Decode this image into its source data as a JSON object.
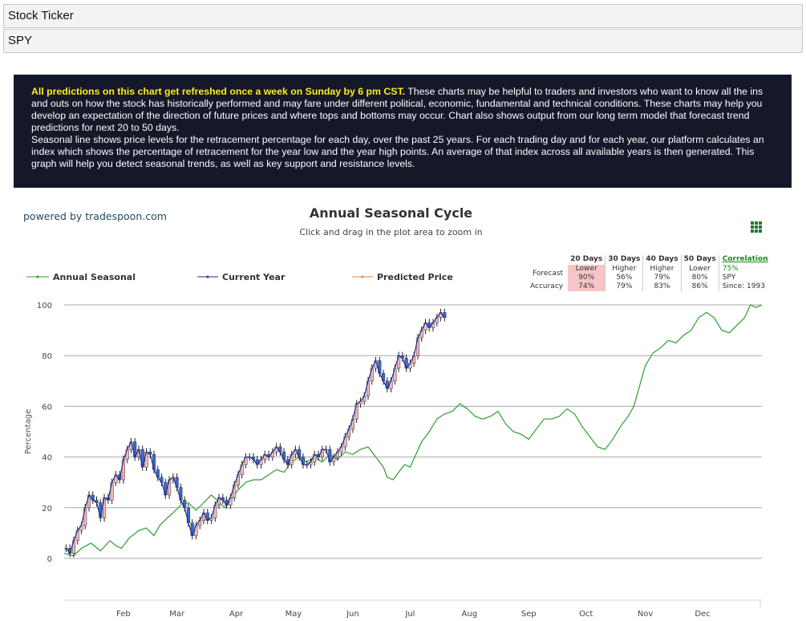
{
  "form": {
    "ticker_label": "Stock Ticker",
    "ticker_value": "SPY"
  },
  "info": {
    "highlight": "All predictions on this chart get refreshed once a week on Sunday by 6 pm CST.",
    "paragraph1": " These charts may be helpful to traders and investors who want to know all the ins and outs on how the stock has historically performed and may fare under different political, economic, fundamental and technical conditions. These charts may help you develop an expectation of the direction of future prices and where tops and bottoms may occur. Chart also shows output from our long term model that forecast trend predictions for next 20 to 50 days.",
    "paragraph2": "Seasonal line shows price levels for the retracement percentage for each day, over the past 25 years. For each trading day and for each year, our platform calculates an index which shows the percentage of retracement for the year low and the year high points. An average of that index across all available years is then generated. This graph will help you detect seasonal trends, as well as key support and resistance levels."
  },
  "powered_by": "powered by tradespoon.com",
  "forecast_table": {
    "headers": [
      "20 Days",
      "30 Days",
      "40 Days",
      "50 Days"
    ],
    "forecast_label": "Forecast",
    "accuracy_label": "Accuracy",
    "forecast": [
      {
        "dir": "Lower",
        "pct": "90%"
      },
      {
        "dir": "Higher",
        "pct": "56%"
      },
      {
        "dir": "Higher",
        "pct": "79%"
      },
      {
        "dir": "Lower",
        "pct": "80%"
      }
    ],
    "accuracy": [
      "74%",
      "79%",
      "83%",
      "86%"
    ],
    "correlation_label": "Correlation",
    "correlation_value": "75%",
    "symbol": "SPY",
    "since": "Since: 1993"
  },
  "colors": {
    "seasonal": "#2ca02c",
    "current": "#1f2f8f",
    "predicted": "#f08040",
    "candle_up": "#f4b6bb",
    "candle_down": "#3a66d6",
    "grid": "#aaaaaa",
    "pink_cell": "#f7c5c8"
  },
  "chart_data": {
    "type": "line",
    "title": "Annual Seasonal Cycle",
    "subtitle": "Click and drag in the plot area to zoom in",
    "ylabel": "Percentage",
    "ylim": [
      0,
      100
    ],
    "yticks": [
      0,
      20,
      40,
      60,
      80,
      100
    ],
    "xlim": [
      1,
      366
    ],
    "xticks": [
      {
        "label": "Feb",
        "day": 32
      },
      {
        "label": "Mar",
        "day": 60
      },
      {
        "label": "Apr",
        "day": 91
      },
      {
        "label": "May",
        "day": 121
      },
      {
        "label": "Jun",
        "day": 152
      },
      {
        "label": "Jul",
        "day": 182
      },
      {
        "label": "Aug",
        "day": 213
      },
      {
        "label": "Sep",
        "day": 244
      },
      {
        "label": "Oct",
        "day": 274
      },
      {
        "label": "Nov",
        "day": 305
      },
      {
        "label": "Dec",
        "day": 335
      }
    ],
    "legend_position": "top-left",
    "series": [
      {
        "name": "Annual Seasonal",
        "style": "line",
        "points": [
          [
            1,
            2
          ],
          [
            6,
            1
          ],
          [
            10,
            4
          ],
          [
            15,
            6
          ],
          [
            20,
            3
          ],
          [
            25,
            7
          ],
          [
            28,
            5
          ],
          [
            31,
            4
          ],
          [
            35,
            8
          ],
          [
            40,
            11
          ],
          [
            44,
            12
          ],
          [
            48,
            9
          ],
          [
            51,
            13
          ],
          [
            55,
            16
          ],
          [
            58,
            18
          ],
          [
            62,
            21
          ],
          [
            66,
            22
          ],
          [
            70,
            19
          ],
          [
            74,
            22
          ],
          [
            78,
            25
          ],
          [
            81,
            23
          ],
          [
            85,
            20
          ],
          [
            88,
            23
          ],
          [
            92,
            27
          ],
          [
            96,
            30
          ],
          [
            100,
            31
          ],
          [
            104,
            31
          ],
          [
            108,
            33
          ],
          [
            112,
            35
          ],
          [
            116,
            34
          ],
          [
            120,
            38
          ],
          [
            124,
            40
          ],
          [
            128,
            38
          ],
          [
            132,
            40
          ],
          [
            136,
            38
          ],
          [
            140,
            41
          ],
          [
            144,
            39
          ],
          [
            148,
            42
          ],
          [
            152,
            41
          ],
          [
            156,
            43
          ],
          [
            160,
            44
          ],
          [
            164,
            40
          ],
          [
            168,
            36
          ],
          [
            170,
            32
          ],
          [
            173,
            31
          ],
          [
            176,
            34
          ],
          [
            179,
            37
          ],
          [
            182,
            36
          ],
          [
            185,
            41
          ],
          [
            188,
            46
          ],
          [
            192,
            50
          ],
          [
            196,
            55
          ],
          [
            200,
            57
          ],
          [
            204,
            58
          ],
          [
            208,
            61
          ],
          [
            212,
            59
          ],
          [
            216,
            56
          ],
          [
            220,
            55
          ],
          [
            224,
            56
          ],
          [
            228,
            58
          ],
          [
            232,
            53
          ],
          [
            236,
            50
          ],
          [
            240,
            49
          ],
          [
            244,
            47
          ],
          [
            248,
            51
          ],
          [
            252,
            55
          ],
          [
            256,
            55
          ],
          [
            260,
            56
          ],
          [
            264,
            59
          ],
          [
            268,
            57
          ],
          [
            272,
            52
          ],
          [
            276,
            48
          ],
          [
            280,
            44
          ],
          [
            284,
            43
          ],
          [
            288,
            47
          ],
          [
            292,
            52
          ],
          [
            296,
            56
          ],
          [
            299,
            60
          ],
          [
            302,
            68
          ],
          [
            305,
            76
          ],
          [
            309,
            81
          ],
          [
            313,
            83
          ],
          [
            317,
            86
          ],
          [
            321,
            85
          ],
          [
            325,
            88
          ],
          [
            329,
            90
          ],
          [
            333,
            95
          ],
          [
            337,
            97
          ],
          [
            341,
            95
          ],
          [
            345,
            90
          ],
          [
            349,
            89
          ],
          [
            353,
            92
          ],
          [
            357,
            95
          ],
          [
            360,
            100
          ],
          [
            363,
            99
          ],
          [
            366,
            100
          ]
        ]
      },
      {
        "name": "Current Year",
        "style": "candlestick",
        "points": [
          [
            2,
            4
          ],
          [
            4,
            2
          ],
          [
            6,
            7
          ],
          [
            8,
            11
          ],
          [
            10,
            13
          ],
          [
            12,
            20
          ],
          [
            14,
            25
          ],
          [
            16,
            23
          ],
          [
            18,
            22
          ],
          [
            20,
            16
          ],
          [
            22,
            24
          ],
          [
            24,
            23
          ],
          [
            26,
            30
          ],
          [
            28,
            33
          ],
          [
            30,
            31
          ],
          [
            32,
            39
          ],
          [
            34,
            43
          ],
          [
            36,
            46
          ],
          [
            38,
            40
          ],
          [
            40,
            43
          ],
          [
            42,
            36
          ],
          [
            44,
            42
          ],
          [
            46,
            41
          ],
          [
            48,
            35
          ],
          [
            50,
            32
          ],
          [
            52,
            30
          ],
          [
            54,
            25
          ],
          [
            56,
            31
          ],
          [
            58,
            32
          ],
          [
            60,
            28
          ],
          [
            62,
            23
          ],
          [
            64,
            20
          ],
          [
            66,
            14
          ],
          [
            68,
            9
          ],
          [
            70,
            13
          ],
          [
            72,
            15
          ],
          [
            74,
            18
          ],
          [
            76,
            15
          ],
          [
            78,
            16
          ],
          [
            80,
            21
          ],
          [
            82,
            24
          ],
          [
            84,
            23
          ],
          [
            86,
            21
          ],
          [
            88,
            24
          ],
          [
            90,
            29
          ],
          [
            92,
            33
          ],
          [
            94,
            37
          ],
          [
            96,
            40
          ],
          [
            98,
            40
          ],
          [
            100,
            39
          ],
          [
            102,
            37
          ],
          [
            104,
            39
          ],
          [
            106,
            41
          ],
          [
            108,
            40
          ],
          [
            110,
            42
          ],
          [
            112,
            44
          ],
          [
            114,
            42
          ],
          [
            116,
            39
          ],
          [
            118,
            37
          ],
          [
            120,
            41
          ],
          [
            122,
            43
          ],
          [
            124,
            40
          ],
          [
            126,
            37
          ],
          [
            128,
            37
          ],
          [
            130,
            38
          ],
          [
            132,
            41
          ],
          [
            134,
            40
          ],
          [
            136,
            43
          ],
          [
            138,
            43
          ],
          [
            140,
            38
          ],
          [
            142,
            40
          ],
          [
            144,
            42
          ],
          [
            146,
            44
          ],
          [
            148,
            48
          ],
          [
            150,
            51
          ],
          [
            152,
            55
          ],
          [
            154,
            61
          ],
          [
            156,
            62
          ],
          [
            158,
            64
          ],
          [
            160,
            70
          ],
          [
            162,
            75
          ],
          [
            164,
            78
          ],
          [
            166,
            73
          ],
          [
            168,
            70
          ],
          [
            170,
            67
          ],
          [
            172,
            70
          ],
          [
            174,
            75
          ],
          [
            176,
            80
          ],
          [
            178,
            79
          ],
          [
            180,
            75
          ],
          [
            182,
            77
          ],
          [
            184,
            80
          ],
          [
            186,
            87
          ],
          [
            188,
            90
          ],
          [
            190,
            93
          ],
          [
            192,
            91
          ],
          [
            194,
            93
          ],
          [
            196,
            95
          ],
          [
            198,
            97
          ],
          [
            200,
            95
          ]
        ]
      },
      {
        "name": "Predicted Price",
        "style": "line",
        "points": []
      }
    ]
  }
}
